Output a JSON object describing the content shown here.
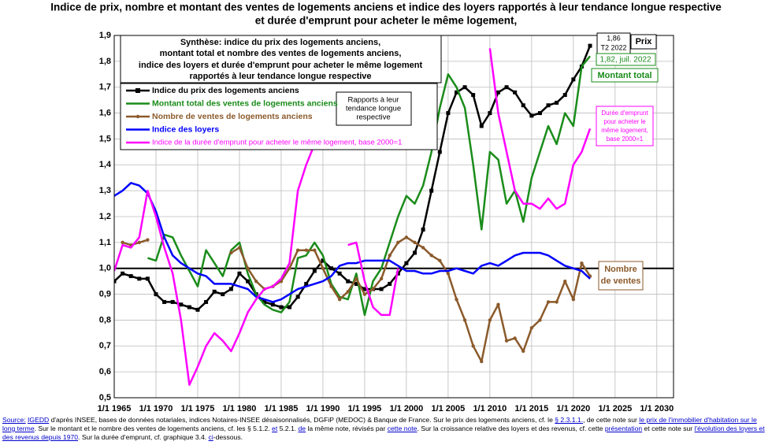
{
  "chart_data": {
    "type": "line",
    "title": [
      "Indice de prix, nombre et montant des ventes de logements anciens et indice des loyers rapportés à leur tendance longue respective",
      "et durée d'emprunt pour acheter le même logement,"
    ],
    "x": [
      1965,
      1966,
      1967,
      1968,
      1969,
      1970,
      1971,
      1972,
      1973,
      1974,
      1975,
      1976,
      1977,
      1978,
      1979,
      1980,
      1981,
      1982,
      1983,
      1984,
      1985,
      1986,
      1987,
      1988,
      1989,
      1990,
      1991,
      1992,
      1993,
      1994,
      1995,
      1996,
      1997,
      1998,
      1999,
      2000,
      2001,
      2002,
      2003,
      2004,
      2005,
      2006,
      2007,
      2008,
      2009,
      2010,
      2011,
      2012,
      2013,
      2014,
      2015,
      2016,
      2017,
      2018,
      2019,
      2020,
      2021,
      2022
    ],
    "xlim": [
      1965,
      2032
    ],
    "xticks": [
      {
        "value": 1965,
        "label": "1/1 1965"
      },
      {
        "value": 1970,
        "label": "1/1 1970"
      },
      {
        "value": 1975,
        "label": "1/1 1975"
      },
      {
        "value": 1980,
        "label": "1/1 1980"
      },
      {
        "value": 1985,
        "label": "1/1 1985"
      },
      {
        "value": 1990,
        "label": "1/1 1990"
      },
      {
        "value": 1995,
        "label": "1/1 1995"
      },
      {
        "value": 2000,
        "label": "1/1 2000"
      },
      {
        "value": 2005,
        "label": "1/1 2005"
      },
      {
        "value": 2010,
        "label": "1/1 2010"
      },
      {
        "value": 2015,
        "label": "1/1 2015"
      },
      {
        "value": 2020,
        "label": "1/1 2020"
      },
      {
        "value": 2025,
        "label": "1/1 2025"
      },
      {
        "value": 2030,
        "label": "1/1 2030"
      }
    ],
    "ylim": [
      0.5,
      1.9
    ],
    "yticks": [
      {
        "value": 0.5,
        "label": "0,5"
      },
      {
        "value": 0.6,
        "label": "0,6"
      },
      {
        "value": 0.7,
        "label": "0,7"
      },
      {
        "value": 0.8,
        "label": "0,8"
      },
      {
        "value": 0.9,
        "label": "0,9"
      },
      {
        "value": 1,
        "label": "1,0"
      },
      {
        "value": 1.1,
        "label": "1,1"
      },
      {
        "value": 1.2,
        "label": "1,2"
      },
      {
        "value": 1.3,
        "label": "1,3"
      },
      {
        "value": 1.4,
        "label": "1,4"
      },
      {
        "value": 1.5,
        "label": "1,5"
      },
      {
        "value": 1.6,
        "label": "1,6"
      },
      {
        "value": 1.7,
        "label": "1,7"
      },
      {
        "value": 1.8,
        "label": "1,8"
      },
      {
        "value": 1.9,
        "label": "1,9"
      }
    ],
    "grid": true,
    "reference_line": 1,
    "series": [
      {
        "name": "Indice du prix des logements anciens",
        "color": "#000000",
        "marker": "square",
        "values": [
          0.95,
          0.98,
          0.97,
          0.96,
          0.96,
          0.9,
          0.87,
          0.87,
          0.86,
          0.85,
          0.84,
          0.87,
          0.91,
          0.9,
          0.92,
          0.98,
          0.95,
          0.9,
          0.87,
          0.86,
          0.85,
          0.85,
          0.89,
          0.94,
          0.99,
          1.03,
          1.0,
          0.98,
          0.95,
          0.94,
          0.92,
          0.92,
          0.92,
          0.94,
          0.98,
          1.02,
          1.06,
          1.15,
          1.3,
          1.45,
          1.6,
          1.68,
          1.7,
          1.67,
          1.55,
          1.6,
          1.68,
          1.7,
          1.68,
          1.63,
          1.59,
          1.6,
          1.63,
          1.64,
          1.67,
          1.73,
          1.78,
          1.86
        ]
      },
      {
        "name": "Montant total des ventes de logements anciens",
        "color": "#1a8c1a",
        "values": [
          null,
          null,
          null,
          null,
          1.04,
          1.03,
          1.13,
          1.12,
          1.05,
          0.99,
          0.93,
          1.07,
          1.02,
          0.97,
          1.07,
          1.1,
          0.98,
          0.9,
          0.86,
          0.84,
          0.83,
          0.87,
          1.04,
          1.05,
          1.1,
          1.05,
          0.94,
          0.89,
          0.88,
          0.98,
          0.82,
          0.95,
          1.0,
          1.1,
          1.2,
          1.28,
          1.25,
          1.32,
          1.45,
          1.62,
          1.75,
          1.7,
          1.62,
          1.4,
          1.15,
          1.45,
          1.42,
          1.25,
          1.3,
          1.18,
          1.35,
          1.45,
          1.55,
          1.48,
          1.6,
          1.55,
          1.78,
          1.82
        ]
      },
      {
        "name": "Nombre de ventes de logements anciens",
        "color": "#8b5a2b",
        "marker": "dot",
        "values": [
          null,
          1.1,
          1.09,
          1.1,
          1.11,
          null,
          null,
          null,
          null,
          null,
          null,
          null,
          null,
          null,
          1.06,
          1.08,
          1.0,
          0.95,
          0.92,
          0.93,
          0.95,
          1.0,
          1.07,
          1.07,
          1.07,
          1.0,
          0.93,
          0.88,
          0.91,
          0.96,
          0.9,
          0.92,
          0.96,
          1.05,
          1.1,
          1.12,
          1.1,
          1.08,
          1.05,
          1.03,
          0.98,
          0.88,
          0.8,
          0.7,
          0.64,
          0.8,
          0.86,
          0.72,
          0.73,
          0.68,
          0.77,
          0.8,
          0.87,
          0.87,
          0.95,
          0.88,
          1.02,
          0.97
        ]
      },
      {
        "name": "Indice des loyers",
        "color": "#0000ff",
        "values": [
          1.28,
          1.3,
          1.33,
          1.32,
          1.29,
          1.22,
          1.12,
          1.05,
          1.02,
          1.0,
          0.98,
          0.97,
          0.94,
          0.94,
          0.94,
          0.93,
          0.92,
          0.89,
          0.88,
          0.87,
          0.88,
          0.9,
          0.92,
          0.93,
          0.94,
          0.95,
          0.97,
          1.01,
          1.02,
          1.02,
          1.03,
          1.03,
          1.03,
          1.03,
          1.01,
          0.99,
          0.99,
          0.98,
          0.98,
          0.99,
          0.99,
          1.0,
          0.99,
          0.98,
          1.01,
          1.02,
          1.01,
          1.03,
          1.05,
          1.06,
          1.06,
          1.06,
          1.05,
          1.03,
          1.01,
          1.0,
          0.99,
          0.96
        ]
      },
      {
        "name": "Indice de la durée d'emprunt pour acheter le même logement, base 2000=1",
        "color": "#ff00ff",
        "values": [
          0.99,
          1.09,
          1.08,
          1.12,
          1.3,
          1.2,
          1.08,
          0.98,
          0.8,
          0.55,
          0.62,
          0.7,
          0.75,
          0.72,
          0.68,
          0.75,
          0.83,
          0.88,
          0.92,
          0.93,
          0.96,
          1.02,
          1.3,
          1.4,
          1.48,
          1.75,
          null,
          null,
          1.09,
          1.1,
          0.95,
          0.85,
          0.82,
          0.82,
          1.0,
          null,
          null,
          null,
          null,
          null,
          null,
          null,
          null,
          null,
          null,
          1.85,
          1.6,
          1.45,
          1.3,
          1.25,
          1.25,
          1.23,
          1.27,
          1.23,
          1.25,
          1.4,
          1.45,
          1.54
        ]
      }
    ],
    "synthesis": [
      "Synthèse: indice du prix des logements anciens,",
      "montant total et nombre des ventes de logements anciens,",
      "indice des loyers et durée d'emprunt pour acheter le même logement",
      "rapportés à leur tendance longue respective"
    ],
    "ratio_note": [
      "Rapports à leur",
      "tendance longue",
      "respective"
    ],
    "annotations": {
      "prix_value": [
        "1,86",
        "T2 2022"
      ],
      "prix": "Prix",
      "montant_value": "1,82, juil. 2022",
      "montant": "Montant total",
      "duree": [
        "Durée d'emprunt",
        "pour acheter le",
        "même logement,",
        "base 2000=1"
      ],
      "ventes": [
        "Nombre",
        "de ventes"
      ]
    }
  },
  "source": [
    {
      "text": "Source:",
      "link": true
    },
    {
      "text": " "
    },
    {
      "text": "IGEDD",
      "link": true
    },
    {
      "text": " d'après INSEE, bases de données notariales, indices Notaires-INSEE désaisonnalisés, DGFiP (MEDOC) & Banque de France.  Sur le prix des logements anciens, cf. le "
    },
    {
      "text": "§ 2.3.1.1.",
      "link": true
    },
    {
      "text": ", de cette note sur "
    },
    {
      "text": "le prix de l'immobilier d'habitation sur le long terme",
      "link": true
    },
    {
      "text": ".  Sur le montant et le nombre des ventes de logements anciens, cf. les § 5.1.2. "
    },
    {
      "text": "et",
      "link": true
    },
    {
      "text": " 5.2.1. "
    },
    {
      "text": "de",
      "link": true
    },
    {
      "text": " la même note, révisés par "
    },
    {
      "text": "cette note",
      "link": true
    },
    {
      "text": ".  Sur la croissance relative des loyers et des revenus, cf. cette "
    },
    {
      "text": "présentation",
      "link": true
    },
    {
      "text": " et cette note sur "
    },
    {
      "text": "l'évolution des loyers et des revenus depuis 1970",
      "link": true
    },
    {
      "text": ".  Sur la durée d'emprunt, cf. graphique 3.4. "
    },
    {
      "text": "ci",
      "link": true
    },
    {
      "text": "-dessous."
    }
  ]
}
